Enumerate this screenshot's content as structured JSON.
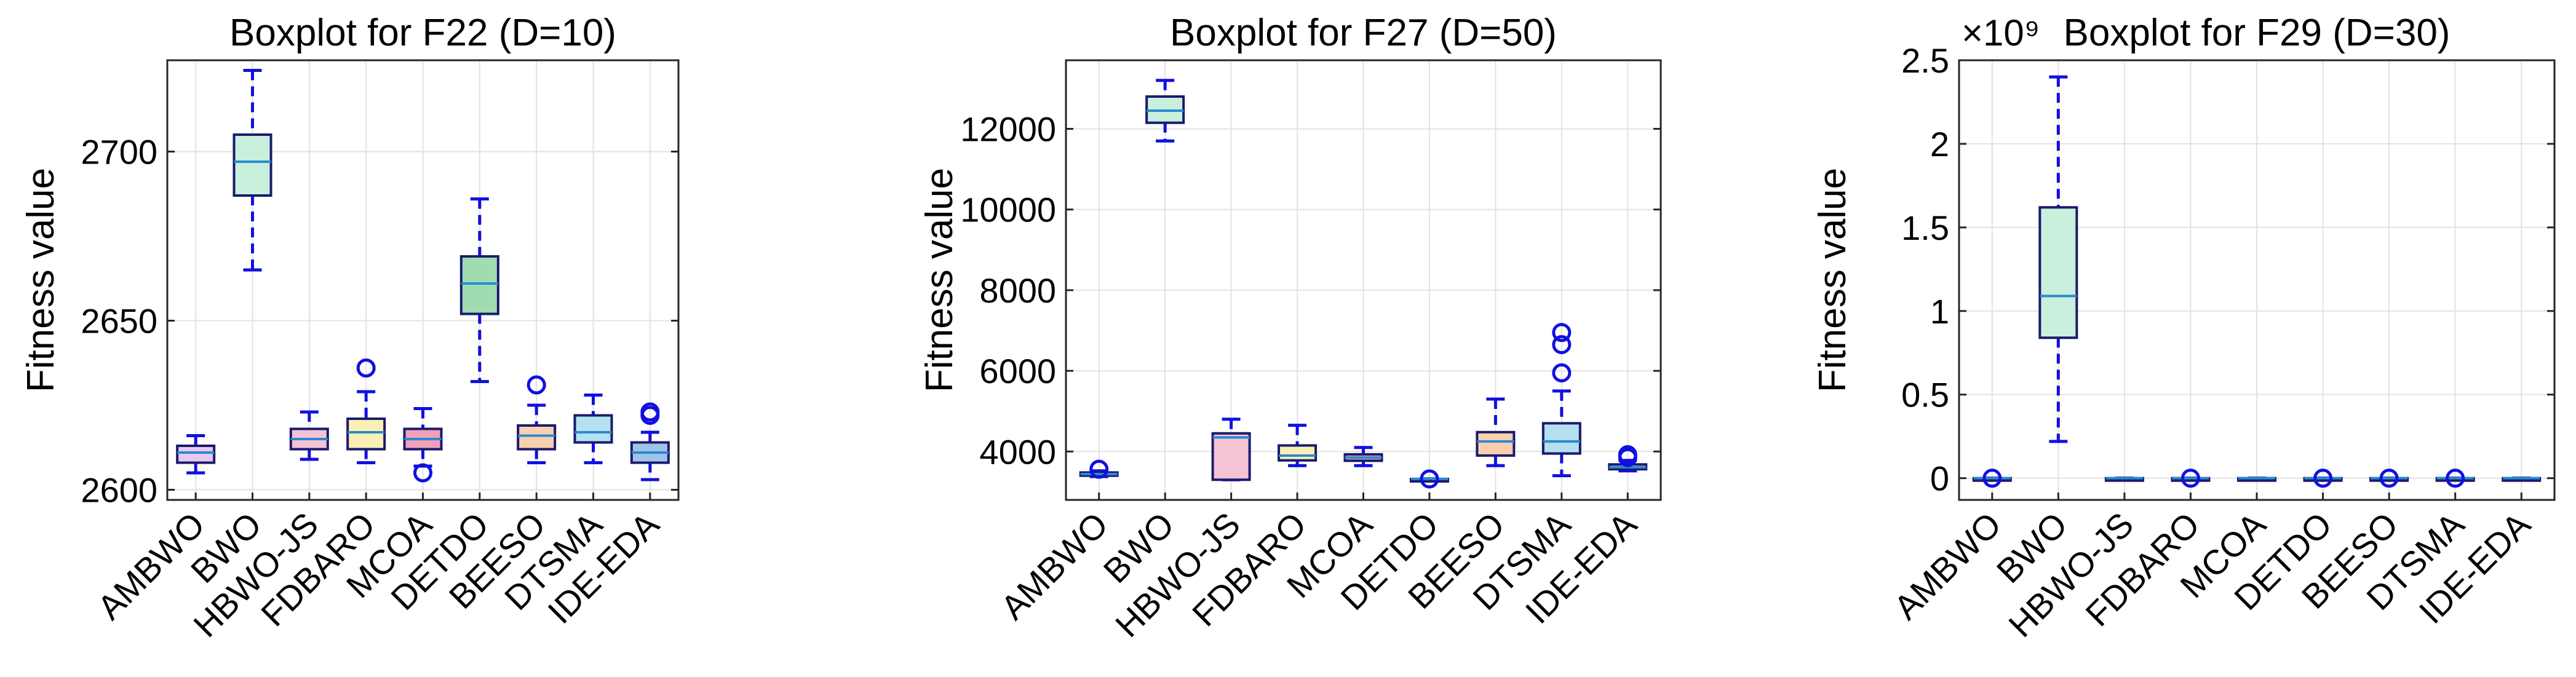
{
  "chart_data": [
    {
      "type": "boxplot",
      "title": "Boxplot for F22 (D=10)",
      "xlabel": "",
      "ylabel": "Fitness value",
      "ylim": [
        2597,
        2727
      ],
      "yticks": [
        2600,
        2650,
        2700
      ],
      "ytick_labels": [
        "2600",
        "2650",
        "2700"
      ],
      "exponent_label": "",
      "grid": true,
      "categories": [
        "AMBWO",
        "BWO",
        "HBWO-JS",
        "FDBARO",
        "MCOA",
        "DETDO",
        "BEESO",
        "DTSMA",
        "IDE-EDA"
      ],
      "boxes": [
        {
          "name": "AMBWO",
          "whisker_low": 2605,
          "q1": 2608,
          "median": 2611,
          "q3": 2613,
          "whisker_high": 2616,
          "outliers": [],
          "fill": "#e6c8f0"
        },
        {
          "name": "BWO",
          "whisker_low": 2665,
          "q1": 2687,
          "median": 2697,
          "q3": 2705,
          "whisker_high": 2724,
          "outliers": [],
          "fill": "#c8f0dc"
        },
        {
          "name": "HBWO-JS",
          "whisker_low": 2609,
          "q1": 2612,
          "median": 2615,
          "q3": 2618,
          "whisker_high": 2623,
          "outliers": [],
          "fill": "#f4c4d4"
        },
        {
          "name": "FDBARO",
          "whisker_low": 2608,
          "q1": 2612,
          "median": 2617,
          "q3": 2621,
          "whisker_high": 2629,
          "outliers": [
            2636
          ],
          "fill": "#faf0b4"
        },
        {
          "name": "MCOA",
          "whisker_low": 2607,
          "q1": 2612,
          "median": 2615,
          "q3": 2618,
          "whisker_high": 2624,
          "outliers": [
            2605
          ],
          "fill": "#f0a0b8"
        },
        {
          "name": "DETDO",
          "whisker_low": 2632,
          "q1": 2652,
          "median": 2661,
          "q3": 2669,
          "whisker_high": 2686,
          "outliers": [],
          "fill": "#a0dcb0"
        },
        {
          "name": "BEESO",
          "whisker_low": 2608,
          "q1": 2612,
          "median": 2616,
          "q3": 2619,
          "whisker_high": 2625,
          "outliers": [
            2631
          ],
          "fill": "#f8d0b0"
        },
        {
          "name": "DTSMA",
          "whisker_low": 2608,
          "q1": 2614,
          "median": 2617,
          "q3": 2622,
          "whisker_high": 2628,
          "outliers": [],
          "fill": "#b4e0f0"
        },
        {
          "name": "IDE-EDA",
          "whisker_low": 2603,
          "q1": 2608,
          "median": 2611,
          "q3": 2614,
          "whisker_high": 2617,
          "outliers": [
            2622,
            2623
          ],
          "fill": "#a0c4e8"
        }
      ]
    },
    {
      "type": "boxplot",
      "title": "Boxplot for F27 (D=50)",
      "xlabel": "",
      "ylabel": "Fitness value",
      "ylim": [
        2800,
        13700
      ],
      "yticks": [
        4000,
        6000,
        8000,
        10000,
        12000
      ],
      "ytick_labels": [
        "4000",
        "6000",
        "8000",
        "10000",
        "12000"
      ],
      "exponent_label": "",
      "grid": true,
      "categories": [
        "AMBWO",
        "BWO",
        "HBWO-JS",
        "FDBARO",
        "MCOA",
        "DETDO",
        "BEESO",
        "DTSMA",
        "IDE-EDA"
      ],
      "boxes": [
        {
          "name": "AMBWO",
          "whisker_low": 3380,
          "q1": 3400,
          "median": 3440,
          "q3": 3480,
          "whisker_high": 3520,
          "outliers": [
            3560
          ],
          "fill": "#e6c8f0"
        },
        {
          "name": "BWO",
          "whisker_low": 11700,
          "q1": 12150,
          "median": 12450,
          "q3": 12800,
          "whisker_high": 13200,
          "outliers": [],
          "fill": "#c8f0dc"
        },
        {
          "name": "HBWO-JS",
          "whisker_low": 3300,
          "q1": 3300,
          "median": 4350,
          "q3": 4450,
          "whisker_high": 4800,
          "outliers": [],
          "fill": "#f4c4d4"
        },
        {
          "name": "FDBARO",
          "whisker_low": 3650,
          "q1": 3780,
          "median": 3900,
          "q3": 4150,
          "whisker_high": 4650,
          "outliers": [],
          "fill": "#faf0b4"
        },
        {
          "name": "MCOA",
          "whisker_low": 3650,
          "q1": 3770,
          "median": 3850,
          "q3": 3930,
          "whisker_high": 4100,
          "outliers": [],
          "fill": "#f0a0b8"
        },
        {
          "name": "DETDO",
          "whisker_low": 3320,
          "q1": 3320,
          "median": 3320,
          "q3": 3320,
          "whisker_high": 3320,
          "outliers": [
            3320
          ],
          "fill": "#a0dcb0"
        },
        {
          "name": "BEESO",
          "whisker_low": 3650,
          "q1": 3900,
          "median": 4250,
          "q3": 4480,
          "whisker_high": 5300,
          "outliers": [],
          "fill": "#f8d0b0"
        },
        {
          "name": "DTSMA",
          "whisker_low": 3400,
          "q1": 3950,
          "median": 4250,
          "q3": 4700,
          "whisker_high": 5500,
          "outliers": [
            5950,
            6650,
            6950
          ],
          "fill": "#b4e0f0"
        },
        {
          "name": "IDE-EDA",
          "whisker_low": 3520,
          "q1": 3560,
          "median": 3610,
          "q3": 3680,
          "whisker_high": 3780,
          "outliers": [
            3850,
            3920
          ],
          "fill": "#a0c4e8"
        }
      ]
    },
    {
      "type": "boxplot",
      "title": "Boxplot for F29 (D=30)",
      "xlabel": "",
      "ylabel": "Fitness value",
      "ylim": [
        -0.13,
        2.5
      ],
      "yticks": [
        0,
        0.5,
        1,
        1.5,
        2,
        2.5
      ],
      "ytick_labels": [
        "0",
        "0.5",
        "1",
        "1.5",
        "2",
        "2.5"
      ],
      "exponent_label": "×10⁹",
      "grid": true,
      "categories": [
        "AMBWO",
        "BWO",
        "HBWO-JS",
        "FDBARO",
        "MCOA",
        "DETDO",
        "BEESO",
        "DTSMA",
        "IDE-EDA"
      ],
      "boxes": [
        {
          "name": "AMBWO",
          "whisker_low": 0,
          "q1": 0,
          "median": 0,
          "q3": 0,
          "whisker_high": 0,
          "outliers": [
            0
          ],
          "fill": "#e6c8f0"
        },
        {
          "name": "BWO",
          "whisker_low": 0.22,
          "q1": 0.84,
          "median": 1.09,
          "q3": 1.62,
          "whisker_high": 2.4,
          "outliers": [],
          "fill": "#c8f0dc"
        },
        {
          "name": "HBWO-JS",
          "whisker_low": 0,
          "q1": 0,
          "median": 0,
          "q3": 0,
          "whisker_high": 0,
          "outliers": [],
          "fill": "#f4c4d4"
        },
        {
          "name": "FDBARO",
          "whisker_low": 0,
          "q1": 0,
          "median": 0,
          "q3": 0,
          "whisker_high": 0,
          "outliers": [
            0
          ],
          "fill": "#faf0b4"
        },
        {
          "name": "MCOA",
          "whisker_low": 0,
          "q1": 0,
          "median": 0,
          "q3": 0,
          "whisker_high": 0,
          "outliers": [],
          "fill": "#f0a0b8"
        },
        {
          "name": "DETDO",
          "whisker_low": 0,
          "q1": 0,
          "median": 0,
          "q3": 0,
          "whisker_high": 0,
          "outliers": [
            0
          ],
          "fill": "#a0dcb0"
        },
        {
          "name": "BEESO",
          "whisker_low": 0,
          "q1": 0,
          "median": 0,
          "q3": 0,
          "whisker_high": 0,
          "outliers": [
            0
          ],
          "fill": "#f8d0b0"
        },
        {
          "name": "DTSMA",
          "whisker_low": 0,
          "q1": 0,
          "median": 0,
          "q3": 0,
          "whisker_high": 0,
          "outliers": [
            0
          ],
          "fill": "#b4e0f0"
        },
        {
          "name": "IDE-EDA",
          "whisker_low": 0,
          "q1": 0,
          "median": 0,
          "q3": 0,
          "whisker_high": 0,
          "outliers": [],
          "fill": "#a0c4e8"
        }
      ]
    }
  ],
  "colors": {
    "whisker": "#1010e0",
    "outlier": "#1010e0",
    "box_edge": "#1a1a6e",
    "median": "#2a8ad0",
    "grid": "#e2e2e2",
    "axis": "#262626",
    "text": "#000000"
  }
}
